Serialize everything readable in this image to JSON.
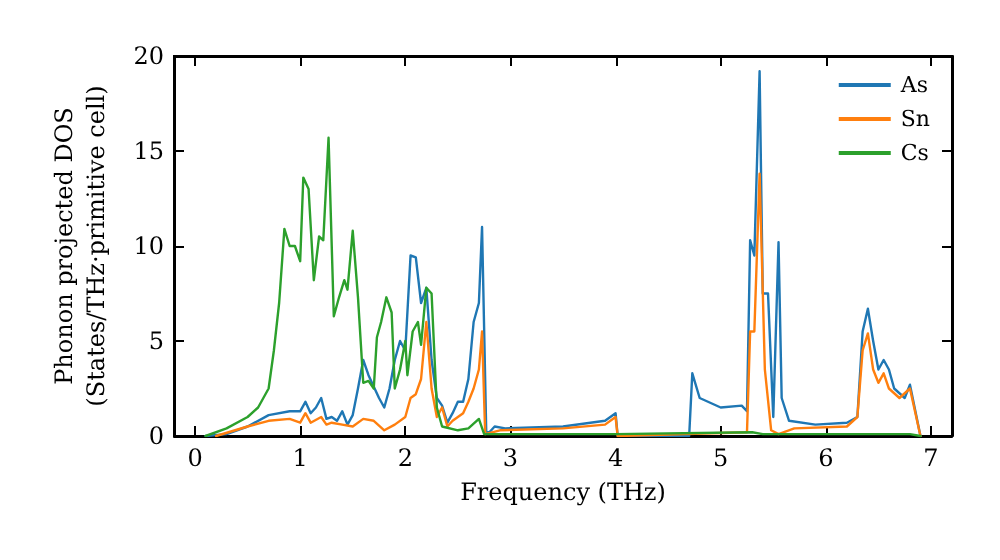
{
  "chart_data": {
    "type": "line",
    "xlabel": "Frequency (THz)",
    "ylabel": "Phonon projected DOS\n(States/THz·primitive cell)",
    "xlim": [
      -0.2,
      7.2
    ],
    "xticks": [
      0,
      1,
      2,
      3,
      4,
      5,
      6,
      7
    ],
    "ylim": [
      0,
      20
    ],
    "yticks": [
      0,
      5,
      10,
      15,
      20
    ],
    "grid": false,
    "legend": "top right",
    "marker": "none",
    "line_style": "solid",
    "series": [
      {
        "name": "As",
        "color": "#1f77b4",
        "x": [
          0.1,
          0.3,
          0.5,
          0.7,
          0.9,
          1.0,
          1.05,
          1.1,
          1.15,
          1.2,
          1.25,
          1.3,
          1.35,
          1.4,
          1.45,
          1.5,
          1.55,
          1.6,
          1.65,
          1.75,
          1.8,
          1.85,
          1.9,
          1.95,
          2.0,
          2.05,
          2.1,
          2.15,
          2.2,
          2.25,
          2.3,
          2.35,
          2.4,
          2.45,
          2.5,
          2.55,
          2.6,
          2.65,
          2.7,
          2.73,
          2.77,
          2.8,
          2.85,
          2.95,
          3.5,
          3.9,
          4.0,
          4.02,
          4.7,
          4.73,
          4.8,
          5.0,
          5.2,
          5.25,
          5.28,
          5.32,
          5.37,
          5.4,
          5.45,
          5.5,
          5.55,
          5.58,
          5.65,
          5.9,
          6.2,
          6.3,
          6.35,
          6.4,
          6.45,
          6.5,
          6.55,
          6.6,
          6.65,
          6.75,
          6.8,
          6.9
        ],
        "values": [
          0,
          0.1,
          0.5,
          1.1,
          1.3,
          1.3,
          1.8,
          1.2,
          1.5,
          2.0,
          0.9,
          1.0,
          0.8,
          1.3,
          0.6,
          1.1,
          2.5,
          4.0,
          3.2,
          2.0,
          1.5,
          2.5,
          4.0,
          5.0,
          4.5,
          9.5,
          9.4,
          7.0,
          7.8,
          4.0,
          2.0,
          1.6,
          0.7,
          1.2,
          1.8,
          1.8,
          3.0,
          6.0,
          7.0,
          11.0,
          0.2,
          0.2,
          0.5,
          0.4,
          0.5,
          0.8,
          1.2,
          0,
          0,
          3.3,
          2.0,
          1.5,
          1.6,
          1.3,
          10.3,
          9.5,
          19.2,
          7.5,
          7.5,
          1.0,
          10.2,
          2.0,
          0.8,
          0.6,
          0.7,
          1.0,
          5.5,
          6.7,
          5.0,
          3.5,
          4.0,
          3.5,
          2.5,
          2.0,
          2.7,
          0
        ]
      },
      {
        "name": "Sn",
        "color": "#ff7f0e",
        "x": [
          0.2,
          0.5,
          0.7,
          0.9,
          1.0,
          1.05,
          1.1,
          1.2,
          1.25,
          1.3,
          1.4,
          1.5,
          1.6,
          1.7,
          1.8,
          1.9,
          2.0,
          2.05,
          2.1,
          2.15,
          2.2,
          2.25,
          2.3,
          2.35,
          2.4,
          2.45,
          2.55,
          2.6,
          2.65,
          2.7,
          2.73,
          2.76,
          2.9,
          3.5,
          3.9,
          4.0,
          4.02,
          5.25,
          5.28,
          5.32,
          5.37,
          5.42,
          5.48,
          5.55,
          5.7,
          6.2,
          6.3,
          6.35,
          6.4,
          6.45,
          6.5,
          6.55,
          6.6,
          6.7,
          6.8,
          6.9
        ],
        "values": [
          0,
          0.5,
          0.8,
          0.9,
          0.7,
          1.2,
          0.7,
          1.0,
          0.6,
          0.7,
          0.6,
          0.5,
          0.9,
          0.8,
          0.3,
          0.6,
          1.0,
          2.0,
          2.2,
          3.0,
          6.0,
          2.5,
          1.0,
          1.5,
          0.5,
          0.8,
          1.2,
          1.8,
          2.5,
          3.5,
          5.5,
          0.1,
          0.3,
          0.4,
          0.6,
          1.0,
          0,
          0.2,
          5.5,
          5.5,
          13.8,
          3.5,
          0.3,
          0.1,
          0.4,
          0.5,
          1.0,
          4.5,
          5.4,
          3.5,
          2.8,
          3.3,
          2.5,
          2.0,
          2.5,
          0
        ]
      },
      {
        "name": "Cs",
        "color": "#2ca02c",
        "x": [
          0.1,
          0.3,
          0.5,
          0.6,
          0.7,
          0.75,
          0.8,
          0.85,
          0.9,
          0.95,
          1.0,
          1.03,
          1.08,
          1.13,
          1.18,
          1.22,
          1.27,
          1.32,
          1.37,
          1.42,
          1.45,
          1.5,
          1.55,
          1.6,
          1.65,
          1.7,
          1.73,
          1.77,
          1.82,
          1.87,
          1.9,
          1.95,
          2.0,
          2.02,
          2.07,
          2.12,
          2.15,
          2.2,
          2.25,
          2.3,
          2.35,
          2.5,
          2.6,
          2.7,
          2.75,
          3.0,
          4.0,
          5.3,
          5.4,
          6.8,
          6.9
        ],
        "values": [
          0,
          0.4,
          1.0,
          1.5,
          2.5,
          4.5,
          7.0,
          10.9,
          10.0,
          10.0,
          9.2,
          13.6,
          13.0,
          8.2,
          10.5,
          10.3,
          15.7,
          6.3,
          7.3,
          8.2,
          7.7,
          10.8,
          7.3,
          2.8,
          2.9,
          2.5,
          5.2,
          6.0,
          7.3,
          6.5,
          2.5,
          3.5,
          5.0,
          3.2,
          5.5,
          6.0,
          4.8,
          7.8,
          7.5,
          1.5,
          0.5,
          0.3,
          0.4,
          0.9,
          0.1,
          0.1,
          0.1,
          0.2,
          0.1,
          0.1,
          0
        ]
      }
    ]
  }
}
